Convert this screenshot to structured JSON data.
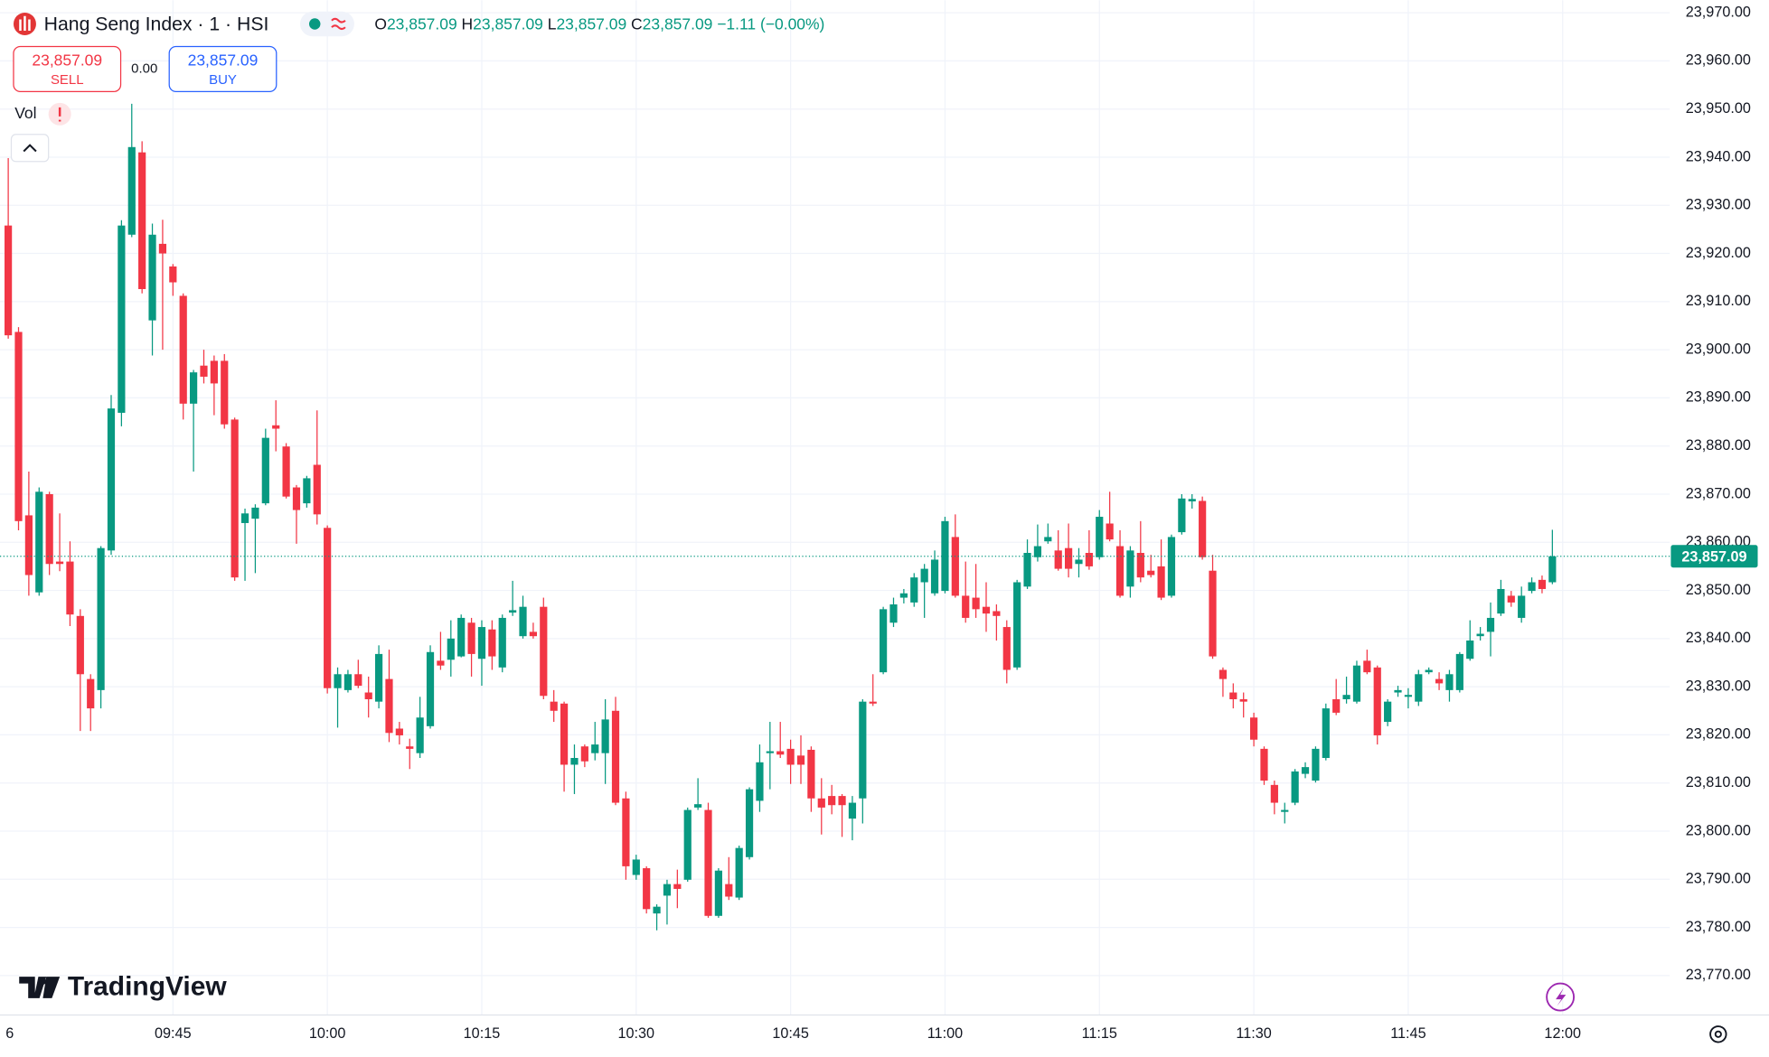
{
  "toolbar": {
    "symbol": "Hang Seng Index · 1 · HSI",
    "ohlc": [
      {
        "key": "O",
        "value": "23,857.09"
      },
      {
        "key": "H",
        "value": "23,857.09"
      },
      {
        "key": "L",
        "value": "23,857.09"
      },
      {
        "key": "C",
        "value": "23,857.09"
      }
    ],
    "change": "−1.11 (−0.00%)",
    "sell": {
      "price": "23,857.09",
      "label": "SELL"
    },
    "spread": "0.00",
    "buy": {
      "price": "23,857.09",
      "label": "BUY"
    },
    "volume_label": "Vol",
    "watermark": "TradingView",
    "x_edge_label": "6"
  },
  "chart_data": {
    "type": "candlestick",
    "up_color": "#089981",
    "down_color": "#f23645",
    "grid": true,
    "open": [
      23925.8,
      23903.7,
      23865.6,
      23849.6,
      23870.0,
      23856.0,
      23856.0,
      23844.7,
      23831.6,
      23829.3,
      23858.3,
      23886.9,
      23923.9,
      23941.0,
      23906.1,
      23922,
      23917.3,
      23911.2,
      23888.8,
      23896.7,
      23897.7,
      23897.7,
      23885.5,
      23864,
      23864.9,
      23868.1,
      23884.3,
      23879.9,
      23871.4,
      23868.1,
      23876.1,
      23863.0,
      23829.7,
      23829.3,
      23832.6,
      23828.8,
      23826.9,
      23831.6,
      23821.3,
      23817.6,
      23816.2,
      23821.8,
      23835.4,
      23835.6,
      23836.3,
      23843.3,
      23835.8,
      23841.9,
      23834.0,
      23845.4,
      23840.5,
      23841.4,
      23846.6,
      23826.9,
      23826.5,
      23813.8,
      23817.6,
      23816.2,
      23816.2,
      23825.0,
      23806.8,
      23790.9,
      23792.3,
      23782.9,
      23786.6,
      23789,
      23789.9,
      23804.9,
      23804.4,
      23782.4,
      23789.0,
      23786.2,
      23794.6,
      23806.3,
      23816.2,
      23816.6,
      23817.1,
      23815.7,
      23816.9,
      23806.8,
      23807.3,
      23807.3,
      23802.6,
      23806.8,
      23826.9,
      23833.0,
      23843.3,
      23848.5,
      23847.5,
      23851.7,
      23849.4,
      23849.9,
      23861.1,
      23848.9,
      23848.5,
      23846.6,
      23845.7,
      23842.4,
      23834.0,
      23850.8,
      23856.9,
      23860.2,
      23858.3,
      23858.8,
      23855.5,
      23857.8,
      23856.9,
      23863.9,
      23859.2,
      23850.8,
      23857.8,
      23854.1,
      23855.0,
      23848.9,
      23862.1,
      23868.5,
      23868.6,
      23854.1,
      23833.5,
      23828.8,
      23827.4,
      23823.6,
      23817.1,
      23809.6,
      23804.0,
      23805.9,
      23811.9,
      23810.5,
      23815.2,
      23827.4,
      23827.4,
      23826.9,
      23835.4,
      23834.0,
      23822.7,
      23828.8,
      23827.9,
      23826.9,
      23833.0,
      23831.6,
      23829.3,
      23829.3,
      23835.8,
      23840.5,
      23841.4,
      23845.2,
      23848.9,
      23844.3,
      23849.9,
      23852.2,
      23851.7
    ],
    "high": [
      23939.8,
      23904.7,
      23874.7,
      23871.4,
      23870.5,
      23866,
      23860.2,
      23846.1,
      23832.6,
      23859.2,
      23890.6,
      23926.9,
      23951.1,
      23943.3,
      23926.2,
      23927,
      23917.8,
      23911.7,
      23895.8,
      23900.0,
      23898.8,
      23899.1,
      23885.9,
      23867,
      23867.9,
      23883.6,
      23889.5,
      23880.6,
      23871.9,
      23873.8,
      23887.4,
      23863.5,
      23834.0,
      23833.5,
      23835.6,
      23832.1,
      23838.6,
      23837.7,
      23822.7,
      23819.2,
      23827.9,
      23838.6,
      23841.4,
      23843.8,
      23845.0,
      23844.3,
      23843.8,
      23843.8,
      23845.0,
      23852.0,
      23848.9,
      23843.3,
      23848.5,
      23829.3,
      23826.9,
      23818.0,
      23818.0,
      23822.7,
      23827.4,
      23827.9,
      23808.2,
      23795.1,
      23792.7,
      23784.8,
      23789.9,
      23792,
      23804.9,
      23811.0,
      23805.9,
      23792.3,
      23794.6,
      23797.0,
      23809.1,
      23818.0,
      23822.7,
      23822.7,
      23819.0,
      23819.9,
      23817.6,
      23811.0,
      23809.6,
      23807.7,
      23807.3,
      23827.4,
      23832.6,
      23846.6,
      23848.5,
      23850.3,
      23853.6,
      23855.5,
      23858.3,
      23865.3,
      23865.8,
      23856.0,
      23855.5,
      23851.7,
      23847.1,
      23843.8,
      23852.2,
      23860.6,
      23863.7,
      23863.9,
      23862.5,
      23863.9,
      23858.8,
      23862.5,
      23866.7,
      23870.5,
      23862.5,
      23859.2,
      23864.4,
      23857.4,
      23860.6,
      23861.6,
      23870.0,
      23870,
      23869.5,
      23857.4,
      23834.0,
      23830.7,
      23828.8,
      23824.6,
      23817.6,
      23810.5,
      23805.9,
      23812.9,
      23814.3,
      23817.6,
      23826.5,
      23831.6,
      23832.1,
      23835.4,
      23837.7,
      23834.4,
      23827.4,
      23830.2,
      23829.7,
      23833.5,
      23834.0,
      23833.0,
      23833.5,
      23837.2,
      23843.8,
      23842.4,
      23847.5,
      23852.2,
      23849.9,
      23850.8,
      23852.7,
      23853.1,
      23862.6
    ],
    "low": [
      23902.3,
      23862.5,
      23848.9,
      23848.9,
      23853.2,
      23854,
      23842.6,
      23820.8,
      23820.8,
      23825.5,
      23857.4,
      23884.1,
      23923.4,
      23911.7,
      23898.8,
      23900,
      23911.2,
      23885.5,
      23874.7,
      23893.0,
      23886.4,
      23883.6,
      23852.0,
      23852,
      23853.6,
      23867.7,
      23878.9,
      23869.1,
      23859.7,
      23867.2,
      23863.7,
      23828.6,
      23821.5,
      23828.8,
      23829.7,
      23823.6,
      23825.5,
      23818.5,
      23818.0,
      23812.9,
      23815.2,
      23821.3,
      23833.5,
      23832.1,
      23836.1,
      23832.1,
      23830.2,
      23833.5,
      23833.0,
      23844.7,
      23840.0,
      23840.0,
      23827.4,
      23822.7,
      23808.2,
      23807.7,
      23813.3,
      23814.7,
      23809.8,
      23805.4,
      23789.9,
      23789.9,
      23782.9,
      23779.4,
      23780.6,
      23784,
      23789.5,
      23804.4,
      23782.0,
      23782.0,
      23785.7,
      23785.7,
      23794.1,
      23804.0,
      23808.7,
      23815.2,
      23809.8,
      23809.8,
      23804.0,
      23799.3,
      23803.5,
      23798.8,
      23798.1,
      23801.6,
      23826.0,
      23832.6,
      23842.4,
      23847.3,
      23846.6,
      23844.3,
      23848.9,
      23849.4,
      23848.5,
      23843.3,
      23844.3,
      23841.4,
      23839.6,
      23830.7,
      23833.5,
      23850.3,
      23856.0,
      23859.7,
      23854.1,
      23852.7,
      23852.7,
      23854.3,
      23856.4,
      23860.2,
      23848.5,
      23848.5,
      23851.7,
      23852.7,
      23848.0,
      23848.5,
      23861.6,
      23867,
      23856.4,
      23835.8,
      23827.9,
      23825.5,
      23823.6,
      23817.6,
      23809.6,
      23803.5,
      23801.6,
      23805.4,
      23811.0,
      23810.1,
      23814.7,
      23824.1,
      23826.5,
      23826.5,
      23832.6,
      23818.0,
      23821.8,
      23827.9,
      23825.5,
      23826.0,
      23832.6,
      23829.3,
      23826.9,
      23828.8,
      23835.4,
      23839.6,
      23836.3,
      23844.7,
      23846.6,
      23843.3,
      23849.4,
      23849.4,
      23851.3
    ],
    "close": [
      23903.0,
      23864.4,
      23853.2,
      23870.5,
      23855.5,
      23855.5,
      23845.0,
      23832.6,
      23825.5,
      23858.8,
      23887.8,
      23925.8,
      23942.1,
      23912.6,
      23923.9,
      23920,
      23914.0,
      23888.8,
      23895.3,
      23894.4,
      23893.0,
      23884.5,
      23852.7,
      23866,
      23867.2,
      23881.7,
      23883.6,
      23869.5,
      23866.7,
      23873.3,
      23865.8,
      23829.7,
      23832.6,
      23832.6,
      23830.2,
      23827.4,
      23836.8,
      23820.4,
      23819.9,
      23817.1,
      23823.6,
      23837.2,
      23834.4,
      23840.0,
      23844.3,
      23836.8,
      23842.4,
      23836.3,
      23844.3,
      23845.9,
      23846.6,
      23840.5,
      23828.1,
      23825.0,
      23813.8,
      23815.2,
      23814.5,
      23818.0,
      23823.2,
      23805.9,
      23792.7,
      23794.1,
      23783.8,
      23784.3,
      23789.0,
      23788,
      23804.4,
      23805.6,
      23782.4,
      23791.8,
      23786.4,
      23796.5,
      23808.7,
      23814.3,
      23816.6,
      23815.9,
      23813.8,
      23813.8,
      23806.8,
      23804.9,
      23805.4,
      23805.4,
      23805.9,
      23826.9,
      23826.5,
      23846.1,
      23847.1,
      23849.4,
      23852.7,
      23854.5,
      23856.4,
      23864.4,
      23848.9,
      23844.3,
      23846.1,
      23845.2,
      23844.7,
      23833.5,
      23851.7,
      23857.8,
      23859.2,
      23861.1,
      23854.5,
      23854.5,
      23856.4,
      23855.0,
      23865.3,
      23860.6,
      23848.9,
      23858.3,
      23852.7,
      23853.2,
      23848.5,
      23861.1,
      23869.1,
      23869,
      23856.9,
      23836.3,
      23831.6,
      23827.4,
      23826.9,
      23819.0,
      23810.5,
      23805.9,
      23804.4,
      23812.4,
      23813.3,
      23817.1,
      23825.5,
      23824.6,
      23828.3,
      23834.4,
      23833.0,
      23819.9,
      23826.9,
      23829.3,
      23828.3,
      23832.6,
      23833.5,
      23830.7,
      23832.6,
      23836.8,
      23839.6,
      23841.0,
      23844.3,
      23850.3,
      23847.5,
      23848.9,
      23851.7,
      23850.3,
      23857.09
    ],
    "last_price": {
      "value": 23857.09,
      "label": "23,857.09"
    },
    "xlim": [
      -0.8,
      161.4
    ],
    "xticks": [
      {
        "value": 16,
        "label": "09:45"
      },
      {
        "value": 31,
        "label": "10:00"
      },
      {
        "value": 46,
        "label": "10:15"
      },
      {
        "value": 61,
        "label": "10:30"
      },
      {
        "value": 76,
        "label": "10:45"
      },
      {
        "value": 91,
        "label": "11:00"
      },
      {
        "value": 106,
        "label": "11:15"
      },
      {
        "value": 121,
        "label": "11:30"
      },
      {
        "value": 136,
        "label": "11:45"
      },
      {
        "value": 151,
        "label": "12:00"
      }
    ],
    "ylim": [
      23761.8,
      23972.6
    ],
    "yticks": [
      {
        "value": 23770,
        "label": "23,770.00"
      },
      {
        "value": 23780,
        "label": "23,780.00"
      },
      {
        "value": 23790,
        "label": "23,790.00"
      },
      {
        "value": 23800,
        "label": "23,800.00"
      },
      {
        "value": 23810,
        "label": "23,810.00"
      },
      {
        "value": 23820,
        "label": "23,820.00"
      },
      {
        "value": 23830,
        "label": "23,830.00"
      },
      {
        "value": 23840,
        "label": "23,840.00"
      },
      {
        "value": 23850,
        "label": "23,850.00"
      },
      {
        "value": 23860,
        "label": "23,860.00"
      },
      {
        "value": 23870,
        "label": "23,870.00"
      },
      {
        "value": 23880,
        "label": "23,880.00"
      },
      {
        "value": 23890,
        "label": "23,890.00"
      },
      {
        "value": 23900,
        "label": "23,900.00"
      },
      {
        "value": 23910,
        "label": "23,910.00"
      },
      {
        "value": 23920,
        "label": "23,920.00"
      },
      {
        "value": 23930,
        "label": "23,930.00"
      },
      {
        "value": 23940,
        "label": "23,940.00"
      },
      {
        "value": 23950,
        "label": "23,950.00"
      },
      {
        "value": 23960,
        "label": "23,960.00"
      },
      {
        "value": 23970,
        "label": "23,970.00"
      }
    ]
  }
}
